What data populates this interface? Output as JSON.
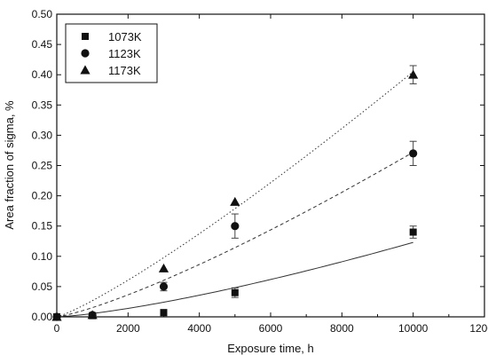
{
  "chart_data": {
    "type": "scatter",
    "title": "",
    "xlabel": "Exposure time, h",
    "ylabel": "Area fraction of sigma, %",
    "xlim": [
      0,
      12000
    ],
    "ylim": [
      0,
      0.5
    ],
    "xticks": [
      0,
      2000,
      4000,
      6000,
      8000,
      10000,
      12000
    ],
    "yticks": [
      0.0,
      0.05,
      0.1,
      0.15,
      0.2,
      0.25,
      0.3,
      0.35,
      0.4,
      0.45,
      0.5
    ],
    "xtick_labels": [
      "0",
      "2000",
      "4000",
      "6000",
      "8000",
      "10000",
      "12000"
    ],
    "ytick_labels": [
      "0.00",
      "0.05",
      "0.10",
      "0.15",
      "0.20",
      "0.25",
      "0.30",
      "0.35",
      "0.40",
      "0.45",
      "0.50"
    ],
    "grid": false,
    "legend_position": "top-left",
    "series": [
      {
        "name": "1073K",
        "marker": "square",
        "fit_line": "solid",
        "x": [
          0,
          1000,
          3000,
          5000,
          10000
        ],
        "y": [
          0.0,
          0.002,
          0.007,
          0.04,
          0.14
        ],
        "err": [
          0.0,
          0.002,
          0.005,
          0.008,
          0.01
        ],
        "fit_x": [
          0,
          10000
        ],
        "fit_y": [
          0,
          0.123
        ],
        "fit_exponent": 1.35
      },
      {
        "name": "1123K",
        "marker": "circle",
        "fit_line": "dashed",
        "x": [
          0,
          1000,
          3000,
          5000,
          10000
        ],
        "y": [
          0.0,
          0.003,
          0.05,
          0.15,
          0.27
        ],
        "err": [
          0.0,
          0.003,
          0.007,
          0.02,
          0.02
        ],
        "fit_x": [
          0,
          10000
        ],
        "fit_y": [
          0,
          0.272
        ],
        "fit_exponent": 1.25
      },
      {
        "name": "1173K",
        "marker": "triangle",
        "fit_line": "dotted",
        "x": [
          0,
          1000,
          3000,
          5000,
          10000
        ],
        "y": [
          0.0,
          0.003,
          0.08,
          0.19,
          0.4
        ],
        "err": [
          0.0,
          0.0,
          0.0,
          0.0,
          0.015
        ],
        "fit_x": [
          0,
          10000
        ],
        "fit_y": [
          0,
          0.405
        ],
        "fit_exponent": 1.18
      }
    ]
  }
}
